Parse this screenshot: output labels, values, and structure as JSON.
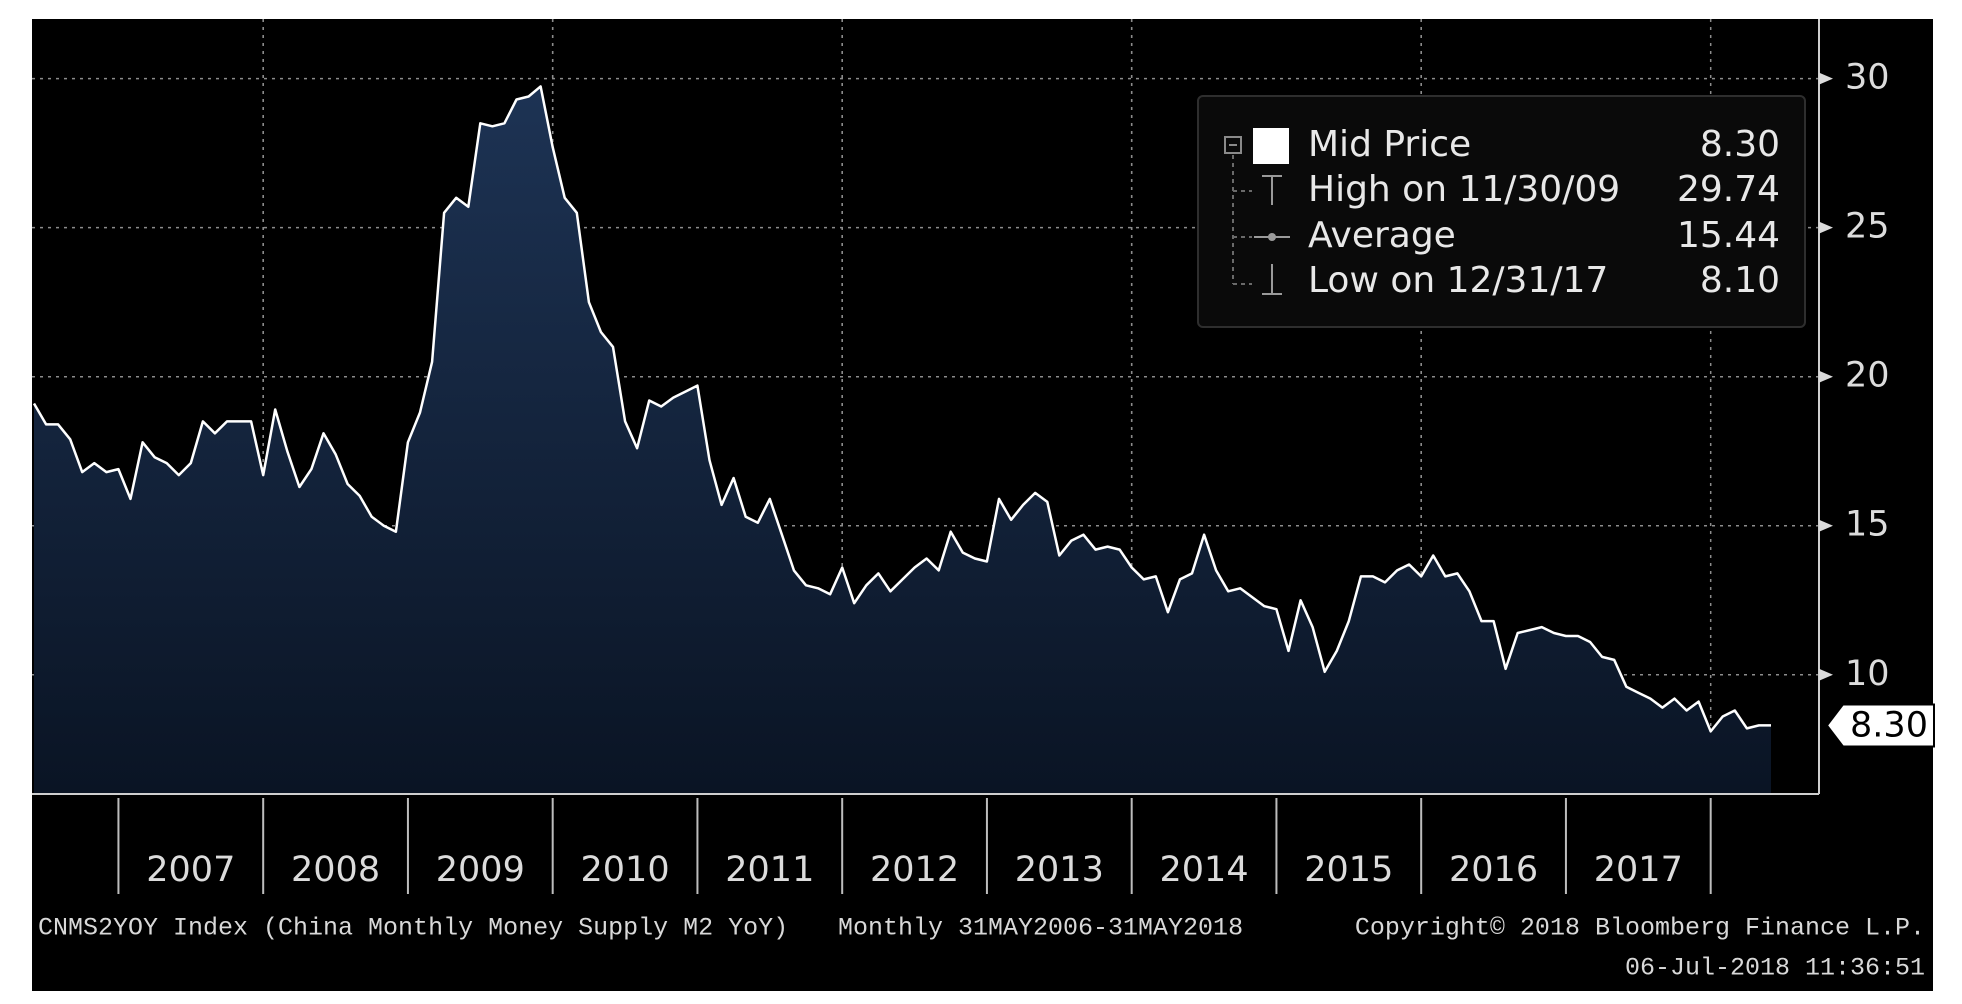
{
  "chart_data": {
    "type": "area",
    "x": [
      "2006-05",
      "2006-06",
      "2006-07",
      "2006-08",
      "2006-09",
      "2006-10",
      "2006-11",
      "2006-12",
      "2007-01",
      "2007-02",
      "2007-03",
      "2007-04",
      "2007-05",
      "2007-06",
      "2007-07",
      "2007-08",
      "2007-09",
      "2007-10",
      "2007-11",
      "2007-12",
      "2008-01",
      "2008-02",
      "2008-03",
      "2008-04",
      "2008-05",
      "2008-06",
      "2008-07",
      "2008-08",
      "2008-09",
      "2008-10",
      "2008-11",
      "2008-12",
      "2009-01",
      "2009-02",
      "2009-03",
      "2009-04",
      "2009-05",
      "2009-06",
      "2009-07",
      "2009-08",
      "2009-09",
      "2009-10",
      "2009-11",
      "2009-12",
      "2010-01",
      "2010-02",
      "2010-03",
      "2010-04",
      "2010-05",
      "2010-06",
      "2010-07",
      "2010-08",
      "2010-09",
      "2010-10",
      "2010-11",
      "2010-12",
      "2011-01",
      "2011-02",
      "2011-03",
      "2011-04",
      "2011-05",
      "2011-06",
      "2011-07",
      "2011-08",
      "2011-09",
      "2011-10",
      "2011-11",
      "2011-12",
      "2012-01",
      "2012-02",
      "2012-03",
      "2012-04",
      "2012-05",
      "2012-06",
      "2012-07",
      "2012-08",
      "2012-09",
      "2012-10",
      "2012-11",
      "2012-12",
      "2013-01",
      "2013-02",
      "2013-03",
      "2013-04",
      "2013-05",
      "2013-06",
      "2013-07",
      "2013-08",
      "2013-09",
      "2013-10",
      "2013-11",
      "2013-12",
      "2014-01",
      "2014-02",
      "2014-03",
      "2014-04",
      "2014-05",
      "2014-06",
      "2014-07",
      "2014-08",
      "2014-09",
      "2014-10",
      "2014-11",
      "2014-12",
      "2015-01",
      "2015-02",
      "2015-03",
      "2015-04",
      "2015-05",
      "2015-06",
      "2015-07",
      "2015-08",
      "2015-09",
      "2015-10",
      "2015-11",
      "2015-12",
      "2016-01",
      "2016-02",
      "2016-03",
      "2016-04",
      "2016-05",
      "2016-06",
      "2016-07",
      "2016-08",
      "2016-09",
      "2016-10",
      "2016-11",
      "2016-12",
      "2017-01",
      "2017-02",
      "2017-03",
      "2017-04",
      "2017-05",
      "2017-06",
      "2017-07",
      "2017-08",
      "2017-09",
      "2017-10",
      "2017-11",
      "2017-12",
      "2018-01",
      "2018-02",
      "2018-03",
      "2018-04",
      "2018-05"
    ],
    "series": [
      {
        "name": "Mid Price",
        "color": "#ffffff",
        "fill": "#1d3354",
        "values": [
          19.1,
          18.4,
          18.4,
          17.9,
          16.8,
          17.1,
          16.8,
          16.9,
          15.9,
          17.8,
          17.3,
          17.1,
          16.7,
          17.1,
          18.5,
          18.1,
          18.5,
          18.5,
          18.5,
          16.7,
          18.9,
          17.5,
          16.3,
          16.9,
          18.1,
          17.4,
          16.4,
          16.0,
          15.3,
          15.0,
          14.8,
          17.8,
          18.8,
          20.5,
          25.5,
          26.0,
          25.7,
          28.5,
          28.4,
          28.5,
          29.3,
          29.4,
          29.74,
          27.7,
          26.0,
          25.5,
          22.5,
          21.5,
          21.0,
          18.5,
          17.6,
          19.2,
          19.0,
          19.3,
          19.5,
          19.7,
          17.2,
          15.7,
          16.6,
          15.3,
          15.1,
          15.9,
          14.7,
          13.5,
          13.0,
          12.9,
          12.7,
          13.6,
          12.4,
          13.0,
          13.4,
          12.8,
          13.2,
          13.6,
          13.9,
          13.5,
          14.8,
          14.1,
          13.9,
          13.8,
          15.9,
          15.2,
          15.7,
          16.1,
          15.8,
          14.0,
          14.5,
          14.7,
          14.2,
          14.3,
          14.2,
          13.6,
          13.2,
          13.3,
          12.1,
          13.2,
          13.4,
          14.7,
          13.5,
          12.8,
          12.9,
          12.6,
          12.3,
          12.2,
          10.8,
          12.5,
          11.6,
          10.1,
          10.8,
          11.8,
          13.3,
          13.3,
          13.1,
          13.5,
          13.7,
          13.3,
          14.0,
          13.3,
          13.4,
          12.8,
          11.8,
          11.8,
          10.2,
          11.4,
          11.5,
          11.6,
          11.4,
          11.3,
          11.3,
          11.1,
          10.6,
          10.5,
          9.6,
          9.4,
          9.2,
          8.9,
          9.2,
          8.8,
          9.1,
          8.1,
          8.6,
          8.8,
          8.2,
          8.3,
          8.3
        ],
        "last_label": "8.30"
      }
    ],
    "ylim": [
      6,
      32
    ],
    "yticks": [
      10,
      15,
      20,
      25,
      30
    ],
    "xticks": [
      2007,
      2008,
      2009,
      2010,
      2011,
      2012,
      2013,
      2014,
      2015,
      2016,
      2017
    ],
    "grid": true,
    "legend_position": "upper right",
    "stats": [
      {
        "label": "High on 11/30/09",
        "value": "29.74"
      },
      {
        "label": "Average",
        "value": "15.44"
      },
      {
        "label": "Low on 12/31/17",
        "value": "8.10"
      }
    ],
    "source": "CNMS2YOY Index (China Monthly Money Supply M2 YoY)",
    "period": "Monthly 31MAY2006-31MAY2018",
    "copyright": "Copyright© 2018 Bloomberg Finance L.P.",
    "timestamp": "06-Jul-2018 11:36:51"
  }
}
